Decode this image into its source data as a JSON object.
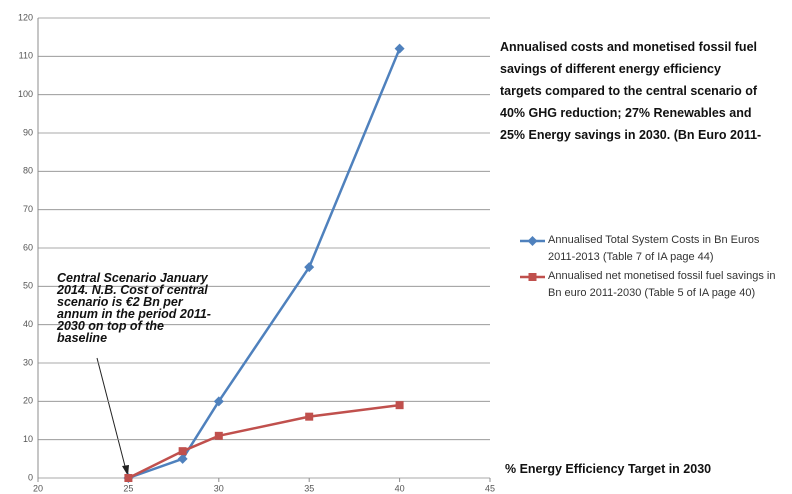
{
  "chart_data": {
    "type": "line",
    "title": "Annualised costs and monetised fossil fuel savings of different energy efficiency targets compared to the central scenario of 40% GHG reduction; 27% Renewables and 25% Energy savings in 2030. (Bn Euro 2011-",
    "x_label": "% Energy Efficiency Target in 2030",
    "annotation": "Central Scenario January 2014. N.B. Cost of central scenario is €2 Bn per annum in the period 2011-2030  on top of the baseline",
    "x": [
      25,
      28,
      30,
      35,
      40
    ],
    "series": [
      {
        "name": "Annualised Total System Costs in Bn Euros 2011-2013 (Table 7 of IA page 44)",
        "color": "#4f81bd",
        "marker": "diamond",
        "values": [
          0,
          5,
          20,
          55,
          112
        ]
      },
      {
        "name": "Annualised net monetised fossil fuel savings in Bn euro 2011-2030 (Table 5 of IA page 40)",
        "color": "#c0504d",
        "marker": "square",
        "values": [
          0,
          7,
          11,
          16,
          19
        ]
      }
    ],
    "xlim": [
      20,
      45
    ],
    "xticks": [
      20,
      25,
      30,
      35,
      40,
      45
    ],
    "ylim": [
      0,
      120
    ],
    "yticks": [
      0,
      10,
      20,
      30,
      40,
      50,
      60,
      70,
      80,
      90,
      100,
      110,
      120
    ],
    "grid": true,
    "legend": "right"
  }
}
